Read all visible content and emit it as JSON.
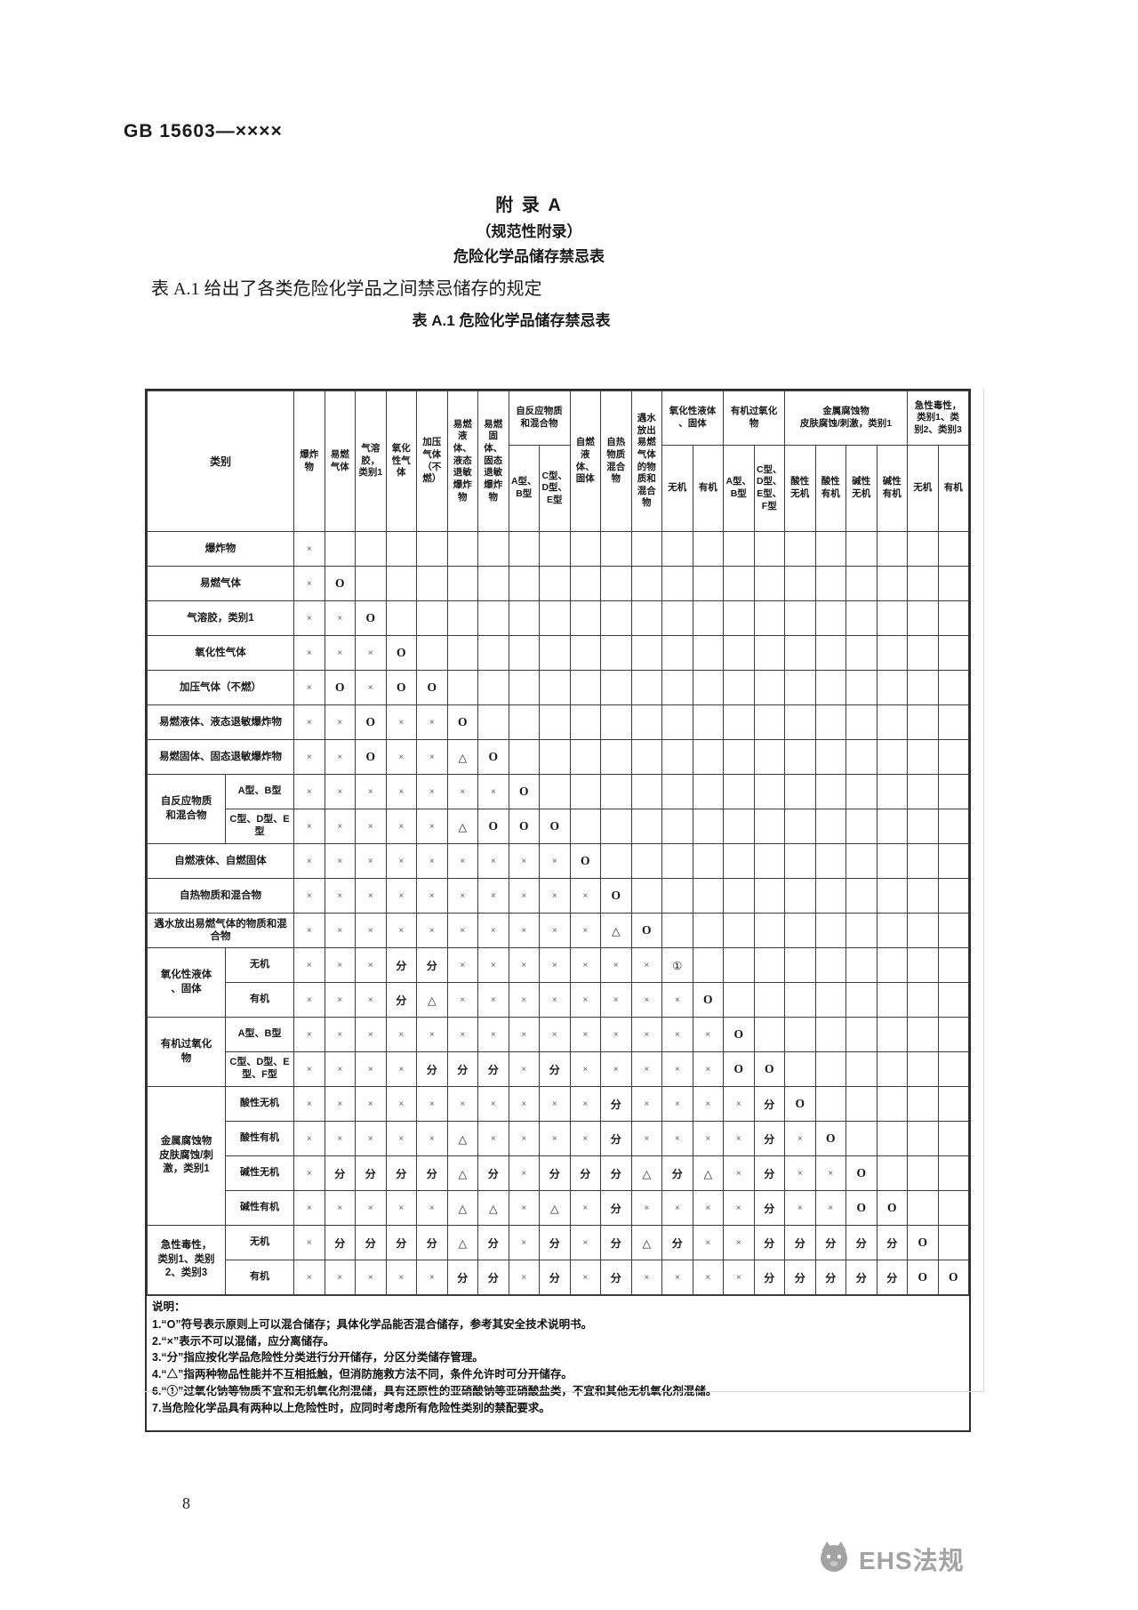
{
  "page": {
    "doc_number": "GB 15603—××××",
    "appendix_title": "附 录 A",
    "appendix_subtitle": "（规范性附录）",
    "appendix_heading": "危险化学品储存禁忌表",
    "intro": "表 A.1 给出了各类危险化学品之间禁忌储存的规定",
    "table_caption": "表 A.1  危险化学品储存禁忌表",
    "page_number": "8",
    "watermark_text": "EHS法规"
  },
  "chart_data": {
    "type": "table",
    "title": "表 A.1  危险化学品储存禁忌表",
    "corner_label": "类别",
    "symbol_colors": {
      "x_gray": "#5c5c5c",
      "ink": "#141414",
      "border": "#3d3d3d",
      "watermark_gray": "#a3a3a3"
    },
    "columns": [
      {
        "label": "爆炸物"
      },
      {
        "label": "易燃气体"
      },
      {
        "label": "气溶胶，类别1"
      },
      {
        "label": "氧化性气体"
      },
      {
        "label": "加压气体（不燃）"
      },
      {
        "label": "易燃液体、液态退敏爆炸物"
      },
      {
        "label": "易燃固体、固态退敏爆炸物"
      },
      {
        "group": "自反应物质\n和混合物",
        "subs": [
          "A型、B型",
          "C型、D型、E型"
        ]
      },
      {
        "label": "自燃液体、固体"
      },
      {
        "label": "自热物质混合物"
      },
      {
        "label": "遇水放出易燃气体的物质和混合物"
      },
      {
        "group": "氧化性液体\n、固体",
        "subs": [
          "无机",
          "有机"
        ]
      },
      {
        "group": "有机过氧化\n物",
        "subs": [
          "A型、B型",
          "C型、D型、E型、F型"
        ]
      },
      {
        "group": "金属腐蚀物\n皮肤腐蚀/刺激，类别1",
        "subs": [
          "酸性无机",
          "酸性有机",
          "碱性无机",
          "碱性有机"
        ]
      },
      {
        "group": "急性毒性，\n类别1、类\n别2、类别3",
        "subs": [
          "无机",
          "有机"
        ]
      }
    ],
    "rows": [
      {
        "label": "爆炸物",
        "cells": [
          "×"
        ]
      },
      {
        "label": "易燃气体",
        "cells": [
          "×",
          "O"
        ]
      },
      {
        "label": "气溶胶，类别1",
        "cells": [
          "×",
          "×",
          "O"
        ]
      },
      {
        "label": "氧化性气体",
        "cells": [
          "×",
          "×",
          "×",
          "O"
        ]
      },
      {
        "label": "加压气体（不燃）",
        "cells": [
          "×",
          "O",
          "×",
          "O",
          "O"
        ]
      },
      {
        "label": "易燃液体、液态退敏爆炸物",
        "cells": [
          "×",
          "×",
          "O",
          "×",
          "×",
          "O"
        ]
      },
      {
        "label": "易燃固体、固态退敏爆炸物",
        "cells": [
          "×",
          "×",
          "O",
          "×",
          "×",
          "△",
          "O"
        ]
      },
      {
        "group": "自反应物质\n和混合物",
        "span": 2,
        "label": "A型、B型",
        "cells": [
          "×",
          "×",
          "×",
          "×",
          "×",
          "×",
          "×",
          "O"
        ]
      },
      {
        "sub": true,
        "label": "C型、D型、E型",
        "cells": [
          "×",
          "×",
          "×",
          "×",
          "×",
          "△",
          "O",
          "O",
          "O"
        ]
      },
      {
        "label": "自燃液体、自燃固体",
        "cells": [
          "×",
          "×",
          "×",
          "×",
          "×",
          "×",
          "×",
          "×",
          "×",
          "O"
        ]
      },
      {
        "label": "自热物质和混合物",
        "cells": [
          "×",
          "×",
          "×",
          "×",
          "×",
          "×",
          "×",
          "×",
          "×",
          "×",
          "O"
        ]
      },
      {
        "label": "遇水放出易燃气体的物质和混合物",
        "cells": [
          "×",
          "×",
          "×",
          "×",
          "×",
          "×",
          "×",
          "×",
          "×",
          "×",
          "△",
          "O"
        ]
      },
      {
        "group": "氧化性液体\n、固体",
        "span": 2,
        "label": "无机",
        "cells": [
          "×",
          "×",
          "×",
          "分",
          "分",
          "×",
          "×",
          "×",
          "×",
          "×",
          "×",
          "×",
          "①"
        ]
      },
      {
        "sub": true,
        "label": "有机",
        "cells": [
          "×",
          "×",
          "×",
          "分",
          "△",
          "×",
          "×",
          "×",
          "×",
          "×",
          "×",
          "×",
          "×",
          "O"
        ]
      },
      {
        "group": "有机过氧化\n物",
        "span": 2,
        "label": "A型、B型",
        "cells": [
          "×",
          "×",
          "×",
          "×",
          "×",
          "×",
          "×",
          "×",
          "×",
          "×",
          "×",
          "×",
          "×",
          "×",
          "O"
        ]
      },
      {
        "sub": true,
        "label": "C型、D型、E型、F型",
        "cells": [
          "×",
          "×",
          "×",
          "×",
          "分",
          "分",
          "分",
          "×",
          "分",
          "×",
          "×",
          "×",
          "×",
          "×",
          "O",
          "O"
        ]
      },
      {
        "group": "金属腐蚀物\n皮肤腐蚀/刺\n激，类别1",
        "span": 4,
        "label": "酸性无机",
        "cells": [
          "×",
          "×",
          "×",
          "×",
          "×",
          "×",
          "×",
          "×",
          "×",
          "×",
          "分",
          "×",
          "×",
          "×",
          "×",
          "分",
          "O"
        ]
      },
      {
        "sub": true,
        "label": "酸性有机",
        "cells": [
          "×",
          "×",
          "×",
          "×",
          "×",
          "△",
          "×",
          "×",
          "×",
          "×",
          "分",
          "×",
          "×",
          "×",
          "×",
          "分",
          "×",
          "O"
        ]
      },
      {
        "sub": true,
        "label": "碱性无机",
        "cells": [
          "×",
          "分",
          "分",
          "分",
          "分",
          "△",
          "分",
          "×",
          "分",
          "分",
          "分",
          "△",
          "分",
          "△",
          "×",
          "分",
          "×",
          "×",
          "O"
        ]
      },
      {
        "sub": true,
        "label": "碱性有机",
        "cells": [
          "×",
          "×",
          "×",
          "×",
          "×",
          "△",
          "△",
          "×",
          "△",
          "×",
          "分",
          "×",
          "×",
          "×",
          "×",
          "分",
          "×",
          "×",
          "O",
          "O"
        ]
      },
      {
        "group": "急性毒性，\n类别1、类别\n2、类别3",
        "span": 2,
        "label": "无机",
        "cells": [
          "×",
          "分",
          "分",
          "分",
          "分",
          "△",
          "分",
          "×",
          "分",
          "×",
          "分",
          "△",
          "分",
          "×",
          "×",
          "分",
          "分",
          "分",
          "分",
          "分",
          "O"
        ]
      },
      {
        "sub": true,
        "label": "有机",
        "cells": [
          "×",
          "×",
          "×",
          "×",
          "×",
          "分",
          "分",
          "×",
          "分",
          "×",
          "分",
          "×",
          "×",
          "×",
          "×",
          "分",
          "分",
          "分",
          "分",
          "分",
          "O",
          "O"
        ]
      }
    ],
    "notes_title": "说明：",
    "notes": [
      "1.“O”符号表示原则上可以混合储存；具体化学品能否混合储存，参考其安全技术说明书。",
      "2.“×”表示不可以混储，应分离储存。",
      "3.“分”指应按化学品危险性分类进行分开储存，分区分类储存管理。",
      "4.“△”指两种物品性能并不互相抵触，但消防施救方法不同，条件允许时可分开储存。",
      "6.“①”过氧化钠等物质不宜和无机氧化剂混储，具有还原性的亚硝酸钠等亚硝酸盐类，不宜和其他无机氧化剂混储。",
      "7.当危险化学品具有两种以上危险性时，应同时考虑所有危险性类别的禁配要求。"
    ]
  }
}
